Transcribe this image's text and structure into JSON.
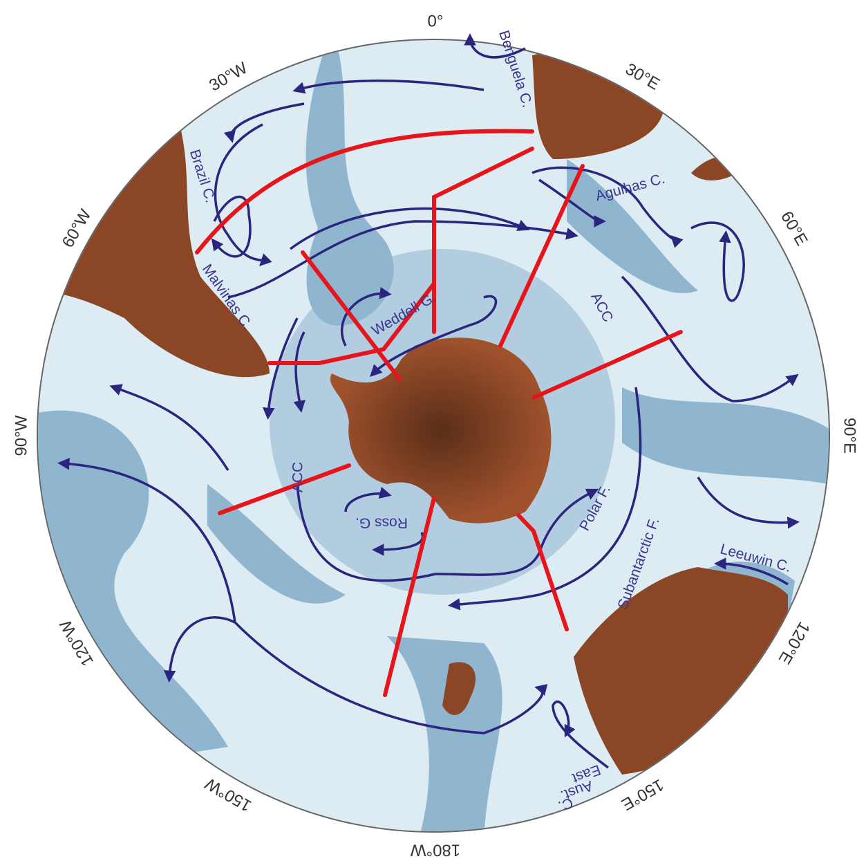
{
  "longitude_labels": [
    "0°",
    "30°E",
    "60°E",
    "90°E",
    "120°E",
    "150°E",
    "180°W",
    "150°W",
    "120°W",
    "90°W",
    "60°W",
    "30°W"
  ],
  "current_labels": [
    "Benguela C.",
    "Agulhas C.",
    "Brazil C.",
    "Malvinas C.",
    "Weddell G.",
    "ACC",
    "ACC",
    "Polar F.",
    "Subantarctic F.",
    "Ross G.",
    "Leeuwin C.",
    "East",
    "Aust.",
    "C."
  ]
}
